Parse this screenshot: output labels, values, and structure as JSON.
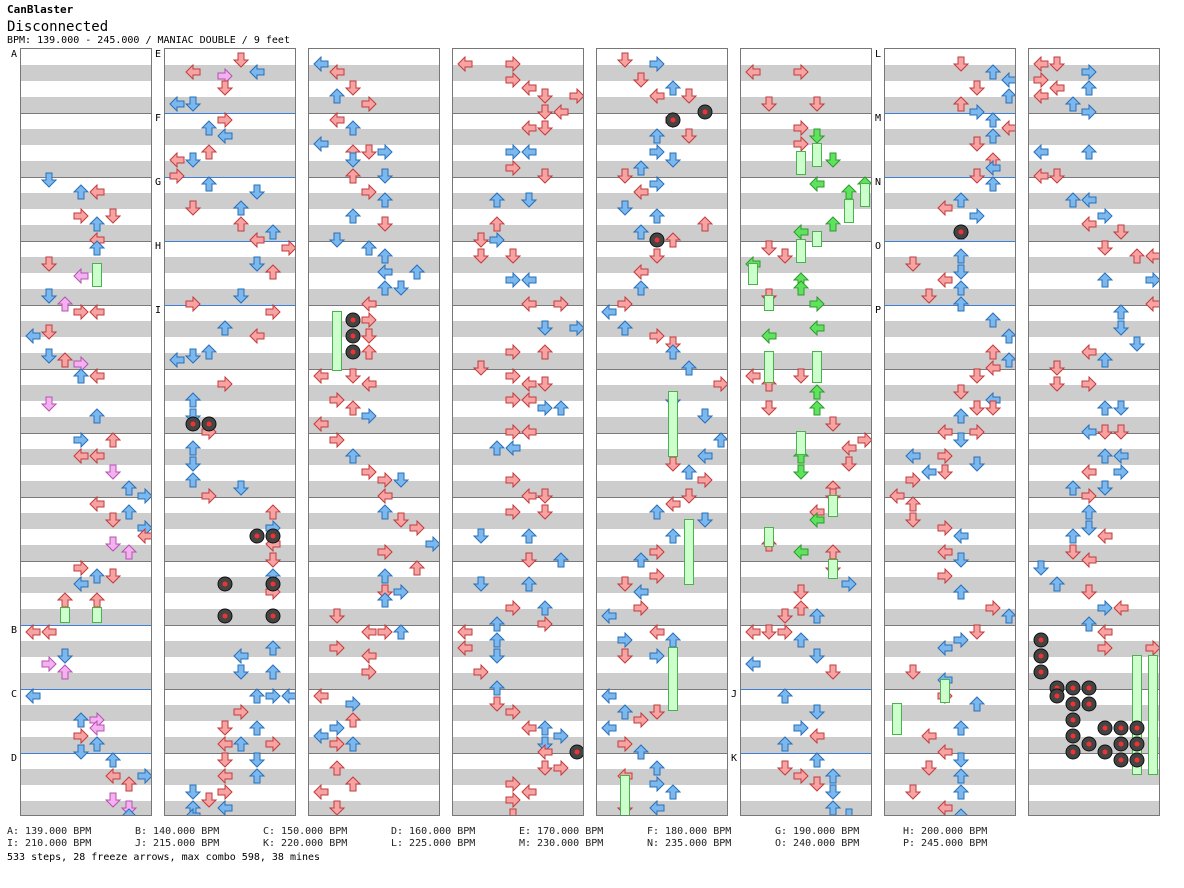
{
  "header": {
    "artist": "CanBlaster",
    "title": "Disconnected",
    "bpm_line": "BPM: 139.000 - 245.000 / MANIAC DOUBLE / 9 feet"
  },
  "colors": {
    "red_arrow": "#f7a3a3",
    "blue_arrow": "#7ab8ee",
    "pink_arrow": "#f4b0f0",
    "green_arrow": "#5fe35f",
    "freeze_body": "#ccffcc",
    "mine": "#444444",
    "bpm_change_line": "#3f7fd6"
  },
  "section_labels": [
    "A",
    "B",
    "C",
    "D",
    "E",
    "F",
    "G",
    "H",
    "I",
    "J",
    "K",
    "L",
    "M",
    "N",
    "O",
    "P"
  ],
  "bpm_legend": [
    [
      "A: 139.000 BPM",
      "I: 210.000 BPM"
    ],
    [
      "B: 140.000 BPM",
      "J: 215.000 BPM"
    ],
    [
      "C: 150.000 BPM",
      "K: 220.000 BPM"
    ],
    [
      "D: 160.000 BPM",
      "L: 225.000 BPM"
    ],
    [
      "E: 170.000 BPM",
      "M: 230.000 BPM"
    ],
    [
      "F: 180.000 BPM",
      "N: 235.000 BPM"
    ],
    [
      "G: 190.000 BPM",
      "O: 240.000 BPM"
    ],
    [
      "H: 200.000 BPM",
      "P: 245.000 BPM"
    ]
  ],
  "stats": "533 steps, 28 freeze arrows, max combo 598, 38 mines"
}
